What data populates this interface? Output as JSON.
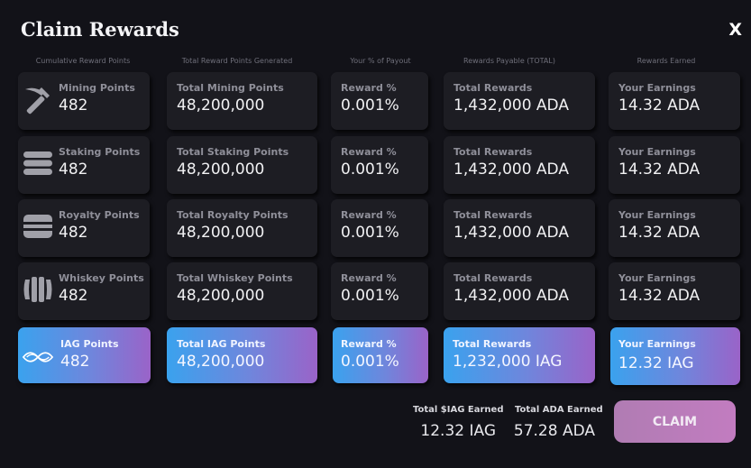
{
  "modal": {
    "title": "Claim Rewards",
    "close_label": "X"
  },
  "columns": [
    "Cumulative Reward Points",
    "Total Reward Points Generated",
    "Your % of Payout",
    "Rewards Payable (TOTAL)",
    "Rewards Earned"
  ],
  "rows": [
    {
      "icon": "pickaxe-icon",
      "points_label": "Mining Points",
      "points": "482",
      "total_label": "Total Mining Points",
      "total": "48,200,000",
      "reward_label": "Reward %",
      "reward": "0.001%",
      "payable_label": "Total Rewards",
      "payable": "1,432,000 ADA",
      "earned_label": "Your Earnings",
      "earned": "14.32 ADA"
    },
    {
      "icon": "stack-icon",
      "points_label": "Staking Points",
      "points": "482",
      "total_label": "Total Staking Points",
      "total": "48,200,000",
      "reward_label": "Reward %",
      "reward": "0.001%",
      "payable_label": "Total Rewards",
      "payable": "1,432,000 ADA",
      "earned_label": "Your Earnings",
      "earned": "14.32 ADA"
    },
    {
      "icon": "wallet-icon",
      "points_label": "Royalty Points",
      "points": "482",
      "total_label": "Total Royalty Points",
      "total": "48,200,000",
      "reward_label": "Reward %",
      "reward": "0.001%",
      "payable_label": "Total Rewards",
      "payable": "1,432,000 ADA",
      "earned_label": "Your Earnings",
      "earned": "14.32 ADA"
    },
    {
      "icon": "barrel-icon",
      "points_label": "Whiskey Points",
      "points": "482",
      "total_label": "Total Whiskey Points",
      "total": "48,200,000",
      "reward_label": "Reward %",
      "reward": "0.001%",
      "payable_label": "Total Rewards",
      "payable": "1,432,000 ADA",
      "earned_label": "Your Earnings",
      "earned": "14.32 ADA"
    },
    {
      "icon": "iag-logo-icon",
      "points_label": "IAG Points",
      "points": "482",
      "total_label": "Total IAG Points",
      "total": "48,200,000",
      "reward_label": "Reward %",
      "reward": "0.001%",
      "payable_label": "Total Rewards",
      "payable": "1,232,000 IAG",
      "earned_label": "Your Earnings",
      "earned": "12.32 IAG"
    }
  ],
  "totals": {
    "iag_label": "Total $IAG Earned",
    "iag_value": "12.32 IAG",
    "ada_label": "Total ADA Earned",
    "ada_value": "57.28 ADA"
  },
  "claim_button": "CLAIM",
  "colors": {
    "background": "#121218",
    "card": "#1d1d23",
    "gradient_start": "#3aa2ee",
    "gradient_end": "#9a63c8",
    "claim_button": "#b97cba"
  }
}
